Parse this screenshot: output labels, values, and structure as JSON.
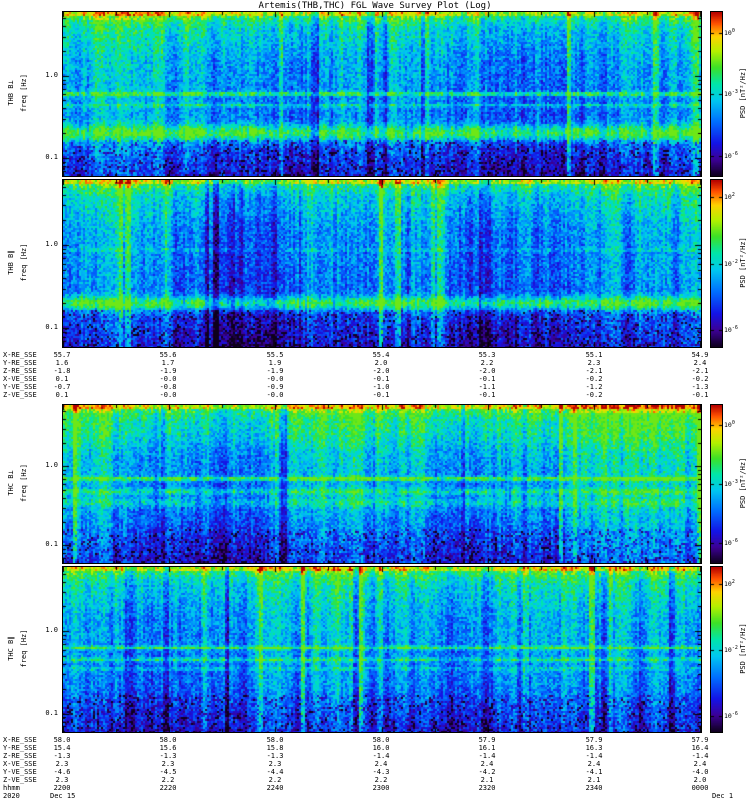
{
  "title": "Artemis(THB,THC) FGL Wave Survey Plot (Log)",
  "chart_data": {
    "type": "heatmap",
    "subtype": "spectrogram",
    "colormap": "rainbow",
    "title": "Artemis(THB,THC) FGL Wave Survey Plot (Log)",
    "x_axis": {
      "label": "hhmm",
      "year": "2020",
      "date_first": "Dec 15",
      "date_last": "Dec 1",
      "tick_labels": [
        "2200",
        "2220",
        "2240",
        "2300",
        "2320",
        "2340",
        "0000"
      ]
    },
    "panels": [
      {
        "name": "THB B⊥",
        "ylabel": "freq [Hz]",
        "y_ticks": [
          "1.0",
          "0.1"
        ],
        "y_range_hz": [
          0.06,
          6.0
        ],
        "colorbar": {
          "label": "PSD [nT²/Hz]",
          "tick_exponents": [
            0,
            -3,
            -6
          ],
          "range_exponents": [
            1,
            -7
          ]
        },
        "bands": [
          {
            "f": 0.6,
            "w": 0.012,
            "a": 0.26
          },
          {
            "f": 0.435,
            "w": 0.01,
            "a": 0.14
          },
          {
            "f": 0.2,
            "w": 0.05,
            "a": 0.3
          }
        ],
        "level_offset": 0,
        "upper_boost": 0,
        "seed": 101
      },
      {
        "name": "THB B∥",
        "ylabel": "freq [Hz]",
        "y_ticks": [
          "1.0",
          "0.1"
        ],
        "y_range_hz": [
          0.06,
          6.0
        ],
        "colorbar": {
          "label": "PSD [nT²/Hz]",
          "tick_exponents": [
            2,
            -2,
            -6
          ],
          "range_exponents": [
            3,
            -7
          ]
        },
        "bands": [
          {
            "f": 0.87,
            "w": 0.008,
            "a": 0.1
          },
          {
            "f": 0.2,
            "w": 0.04,
            "a": 0.3
          }
        ],
        "level_offset": -0.03,
        "upper_boost": 0,
        "seed": 202
      },
      {
        "name": "THC B⊥",
        "ylabel": "freq [Hz]",
        "y_ticks": [
          "1.0",
          "0.1"
        ],
        "y_range_hz": [
          0.06,
          6.0
        ],
        "colorbar": {
          "label": "PSD [nT²/Hz]",
          "tick_exponents": [
            0,
            -3,
            -6
          ],
          "range_exponents": [
            1,
            -7
          ]
        },
        "bands": [
          {
            "f": 0.7,
            "w": 0.012,
            "a": 0.3
          },
          {
            "f": 0.48,
            "w": 0.02,
            "a": 0.16
          },
          {
            "f": 0.35,
            "w": 0.03,
            "a": 0.12
          }
        ],
        "level_offset": 0.01,
        "upper_boost": 0.06,
        "seed": 303
      },
      {
        "name": "THC B∥",
        "ylabel": "freq [Hz]",
        "y_ticks": [
          "1.0",
          "0.1"
        ],
        "y_range_hz": [
          0.06,
          6.0
        ],
        "colorbar": {
          "label": "PSD [nT²/Hz]",
          "tick_exponents": [
            2,
            -2,
            -6
          ],
          "range_exponents": [
            3,
            -7
          ]
        },
        "bands": [
          {
            "f": 0.63,
            "w": 0.01,
            "a": 0.26
          },
          {
            "f": 0.45,
            "w": 0.012,
            "a": 0.18
          },
          {
            "f": 0.35,
            "w": 0.01,
            "a": 0.1
          }
        ],
        "level_offset": -0.03,
        "upper_boost": 0,
        "seed": 404
      }
    ],
    "ephemeris_blocks": [
      {
        "id": "thb",
        "rows": [
          {
            "label": "X-RE_SSE",
            "values": [
              "55.7",
              "55.6",
              "55.5",
              "55.4",
              "55.3",
              "55.1",
              "54.9"
            ]
          },
          {
            "label": "Y-RE_SSE",
            "values": [
              "1.6",
              "1.7",
              "1.9",
              "2.0",
              "2.2",
              "2.3",
              "2.4"
            ]
          },
          {
            "label": "Z-RE_SSE",
            "values": [
              "-1.8",
              "-1.9",
              "-1.9",
              "-2.0",
              "-2.0",
              "-2.1",
              "-2.1"
            ]
          },
          {
            "label": "X-VE_SSE",
            "values": [
              "0.1",
              "-0.0",
              "-0.0",
              "-0.1",
              "-0.1",
              "-0.2",
              "-0.2"
            ]
          },
          {
            "label": "Y-VE_SSE",
            "values": [
              "-0.7",
              "-0.8",
              "-0.9",
              "-1.0",
              "-1.1",
              "-1.2",
              "-1.3"
            ]
          },
          {
            "label": "Z-VE_SSE",
            "values": [
              "0.1",
              "-0.0",
              "-0.0",
              "-0.1",
              "-0.1",
              "-0.2",
              "-0.1"
            ]
          }
        ]
      },
      {
        "id": "thc",
        "rows": [
          {
            "label": "X-RE_SSE",
            "values": [
              "58.0",
              "58.0",
              "58.0",
              "58.0",
              "57.9",
              "57.9",
              "57.9"
            ]
          },
          {
            "label": "Y-RE_SSE",
            "values": [
              "15.4",
              "15.6",
              "15.8",
              "16.0",
              "16.1",
              "16.3",
              "16.4"
            ]
          },
          {
            "label": "Z-RE_SSE",
            "values": [
              "-1.3",
              "-1.3",
              "-1.3",
              "-1.4",
              "-1.4",
              "-1.4",
              "-1.4"
            ]
          },
          {
            "label": "X-VE_SSE",
            "values": [
              "2.3",
              "2.3",
              "2.3",
              "2.4",
              "2.4",
              "2.4",
              "2.4"
            ]
          },
          {
            "label": "Y-VE_SSE",
            "values": [
              "-4.6",
              "-4.5",
              "-4.4",
              "-4.3",
              "-4.2",
              "-4.1",
              "-4.0"
            ]
          },
          {
            "label": "Z-VE_SSE",
            "values": [
              "2.3",
              "2.2",
              "2.2",
              "2.2",
              "2.1",
              "2.1",
              "2.0"
            ]
          }
        ]
      }
    ]
  },
  "colors": {
    "background": "#ffffff",
    "frame": "#000000",
    "text": "#000000"
  }
}
